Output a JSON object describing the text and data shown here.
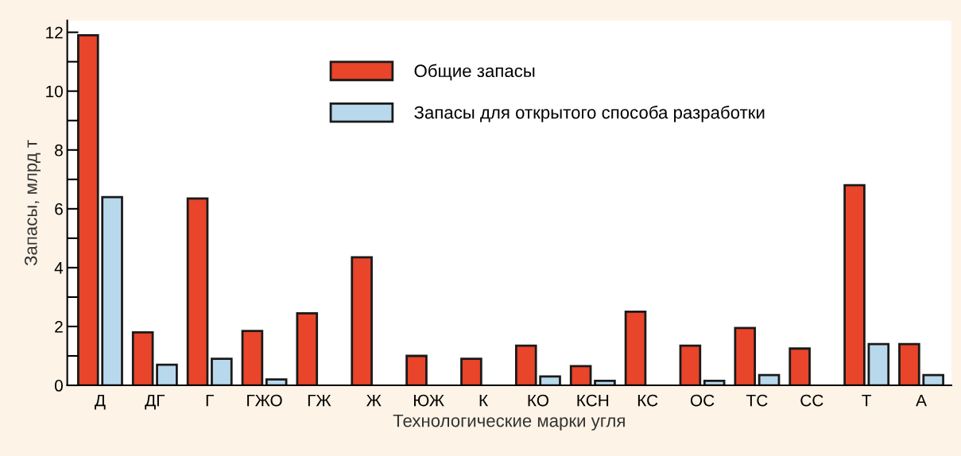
{
  "chart_data": {
    "type": "bar",
    "xlabel": "Технологические марки угля",
    "ylabel": "Запасы, млрд т",
    "categories": [
      "Д",
      "ДГ",
      "Г",
      "ГЖО",
      "ГЖ",
      "Ж",
      "ЮЖ",
      "К",
      "КО",
      "КСН",
      "КС",
      "ОС",
      "ТС",
      "СС",
      "Т",
      "А"
    ],
    "series": [
      {
        "name": "Общие запасы",
        "color": "#e8452a",
        "values": [
          11.9,
          1.8,
          6.35,
          1.85,
          2.45,
          4.35,
          1.0,
          0.9,
          1.35,
          0.65,
          2.5,
          1.35,
          1.95,
          1.25,
          6.8,
          1.4
        ]
      },
      {
        "name": "Запасы для открытого способа разработки",
        "color": "#b8d8ec",
        "values": [
          6.4,
          0.7,
          0.9,
          0.2,
          null,
          null,
          null,
          null,
          0.3,
          0.15,
          null,
          0.15,
          0.35,
          null,
          1.4,
          0.35
        ]
      }
    ],
    "ylim": [
      0,
      12.4
    ],
    "yticks": [
      0,
      {
        "value": 1,
        "label": null
      },
      2,
      {
        "value": 3,
        "label": null
      },
      4,
      {
        "value": 5,
        "label": null
      },
      6,
      {
        "value": 7,
        "label": null
      },
      8,
      {
        "value": 9,
        "label": null
      },
      10,
      {
        "value": 11,
        "label": null
      },
      12
    ],
    "grid": false,
    "legend": "top"
  }
}
